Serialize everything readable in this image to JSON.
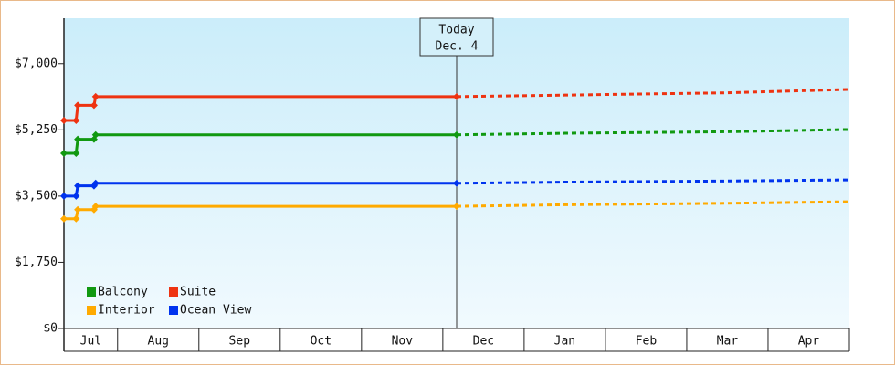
{
  "chart_data": {
    "type": "line",
    "x": [
      0.34,
      0.49,
      0.51,
      0.71,
      0.73,
      5.17
    ],
    "forecast_x": [
      5.17,
      6.5,
      8.5,
      10
    ],
    "series": [
      {
        "name": "Balcony",
        "color": "#119911",
        "values": [
          4630,
          4630,
          5000,
          5000,
          5120,
          5120
        ],
        "forecast": [
          5120,
          5160,
          5200,
          5260
        ]
      },
      {
        "name": "Suite",
        "color": "#ee3311",
        "values": [
          5500,
          5500,
          5900,
          5900,
          6130,
          6130
        ],
        "forecast": [
          6130,
          6170,
          6230,
          6320
        ]
      },
      {
        "name": "Interior",
        "color": "#ffaa00",
        "values": [
          2900,
          2900,
          3140,
          3140,
          3230,
          3230
        ],
        "forecast": [
          3230,
          3270,
          3310,
          3350
        ]
      },
      {
        "name": "Ocean View",
        "color": "#0033ee",
        "values": [
          3500,
          3500,
          3770,
          3770,
          3840,
          3840
        ],
        "forecast": [
          3840,
          3870,
          3900,
          3930
        ]
      }
    ],
    "xlim": [
      0.34,
      10
    ],
    "xticks": [
      {
        "value": 0.67,
        "label": "Jul"
      },
      {
        "value": 1.5,
        "label": "Aug"
      },
      {
        "value": 2.5,
        "label": "Sep"
      },
      {
        "value": 3.5,
        "label": "Oct"
      },
      {
        "value": 4.5,
        "label": "Nov"
      },
      {
        "value": 5.5,
        "label": "Dec"
      },
      {
        "value": 6.5,
        "label": "Jan"
      },
      {
        "value": 7.5,
        "label": "Feb"
      },
      {
        "value": 8.5,
        "label": "Mar"
      },
      {
        "value": 9.5,
        "label": "Apr"
      }
    ],
    "ylim": [
      0,
      8200
    ],
    "yticks": [
      {
        "value": 0,
        "label": "$0"
      },
      {
        "value": 1750,
        "label": "$1,750"
      },
      {
        "value": 3500,
        "label": "$3,500"
      },
      {
        "value": 5250,
        "label": "$5,250"
      },
      {
        "value": 7000,
        "label": "$7,000"
      }
    ],
    "today": {
      "x": 5.17,
      "label": "Today",
      "date": "Dec. 4"
    },
    "legend": "lower left"
  }
}
